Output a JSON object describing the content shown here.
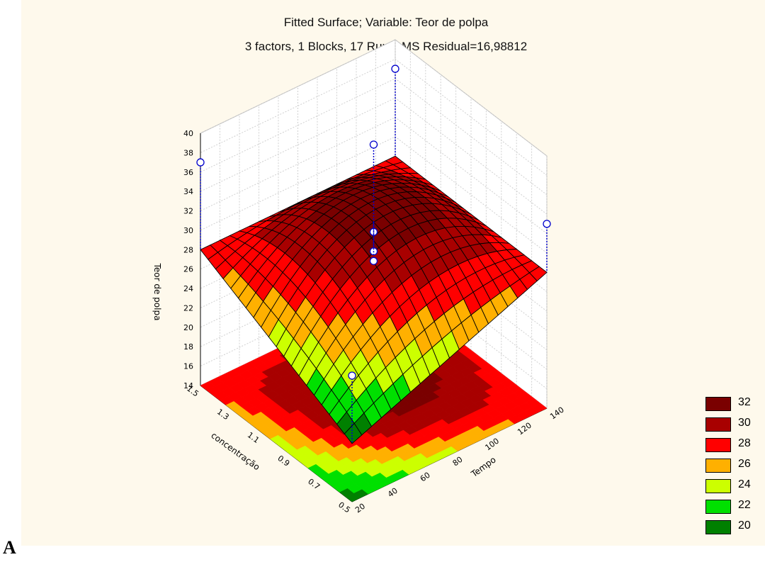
{
  "chart_data": {
    "type": "surface3d",
    "title": "Fitted Surface; Variable: Teor de polpa",
    "subtitle": "3 factors, 1 Blocks, 17 Runs; MS Residual=16,98812",
    "dependent_variable": "DV: Teor de polpa",
    "zlabel": "Teor de polpa",
    "xlabel": "concentração",
    "ylabel": "Tempo",
    "x_ticks": [
      "0.5",
      "0.7",
      "0.9",
      "1.1",
      "1.3",
      "1.5"
    ],
    "y_ticks": [
      "20",
      "40",
      "60",
      "80",
      "100",
      "120",
      "140"
    ],
    "z_ticks": [
      "14",
      "16",
      "18",
      "20",
      "22",
      "24",
      "26",
      "28",
      "30",
      "32",
      "34",
      "36",
      "38",
      "40"
    ],
    "xlim": [
      0.5,
      1.5
    ],
    "ylim": [
      20,
      140
    ],
    "zlim": [
      14,
      40
    ],
    "surface_corners": {
      "x_low_y_low": 20,
      "x_low_y_high": 28,
      "x_high_y_low": 28,
      "x_high_y_high": 28,
      "center_max": 32
    },
    "observed_points": [
      {
        "x": 1.5,
        "y": 140,
        "z": 37
      },
      {
        "x": 0.5,
        "y": 140,
        "z": 33
      },
      {
        "x": 1.5,
        "y": 20,
        "z": 37
      },
      {
        "x": 0.5,
        "y": 20,
        "z": 27
      },
      {
        "x": 1.0,
        "y": 80,
        "z": 40
      },
      {
        "x": 1.0,
        "y": 80,
        "z": 31
      },
      {
        "x": 1.0,
        "y": 80,
        "z": 29
      },
      {
        "x": 1.0,
        "y": 80,
        "z": 28
      }
    ],
    "legend_position": "right",
    "grid": true
  },
  "legend": [
    {
      "label": "32",
      "color": "#7a0000"
    },
    {
      "label": "30",
      "color": "#a80000"
    },
    {
      "label": "28",
      "color": "#ff0000"
    },
    {
      "label": "26",
      "color": "#ffb000"
    },
    {
      "label": "24",
      "color": "#ccff00"
    },
    {
      "label": "22",
      "color": "#00e000"
    },
    {
      "label": "20",
      "color": "#008000"
    }
  ],
  "panel_label": "A"
}
